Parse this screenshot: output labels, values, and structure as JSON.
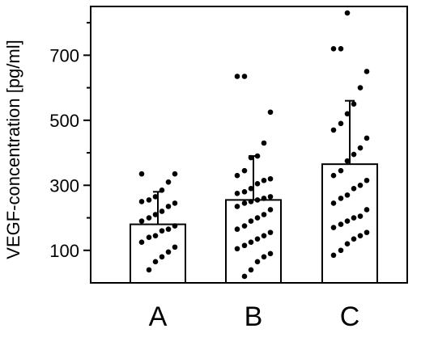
{
  "chart_data": {
    "type": "bar",
    "title": "",
    "xlabel": "",
    "ylabel": "VEGF-concentration [pg/ml]",
    "ylim": [
      0,
      850
    ],
    "yticks": [
      100,
      300,
      500,
      700
    ],
    "grid": false,
    "legend": "none",
    "categories": [
      "A",
      "B",
      "C"
    ],
    "values": [
      180,
      255,
      365
    ],
    "errors": [
      100,
      135,
      195
    ],
    "points": [
      [
        335,
        335,
        310,
        285,
        265,
        255,
        250,
        245,
        235,
        220,
        210,
        200,
        190,
        175,
        165,
        160,
        145,
        140,
        125,
        110,
        95,
        80,
        65,
        40
      ],
      [
        635,
        635,
        525,
        430,
        390,
        385,
        345,
        330,
        320,
        315,
        305,
        290,
        280,
        275,
        265,
        260,
        255,
        250,
        245,
        235,
        225,
        210,
        200,
        190,
        175,
        165,
        155,
        145,
        135,
        125,
        115,
        105,
        90,
        80,
        65,
        40,
        20
      ],
      [
        830,
        720,
        720,
        650,
        600,
        550,
        520,
        490,
        470,
        445,
        415,
        395,
        375,
        345,
        330,
        315,
        300,
        290,
        270,
        260,
        245,
        225,
        205,
        200,
        190,
        180,
        170,
        155,
        145,
        135,
        120,
        100,
        85
      ]
    ],
    "colors": {
      "bar_fill": "#ffffff",
      "bar_stroke": "#000000",
      "point": "#000000"
    }
  }
}
